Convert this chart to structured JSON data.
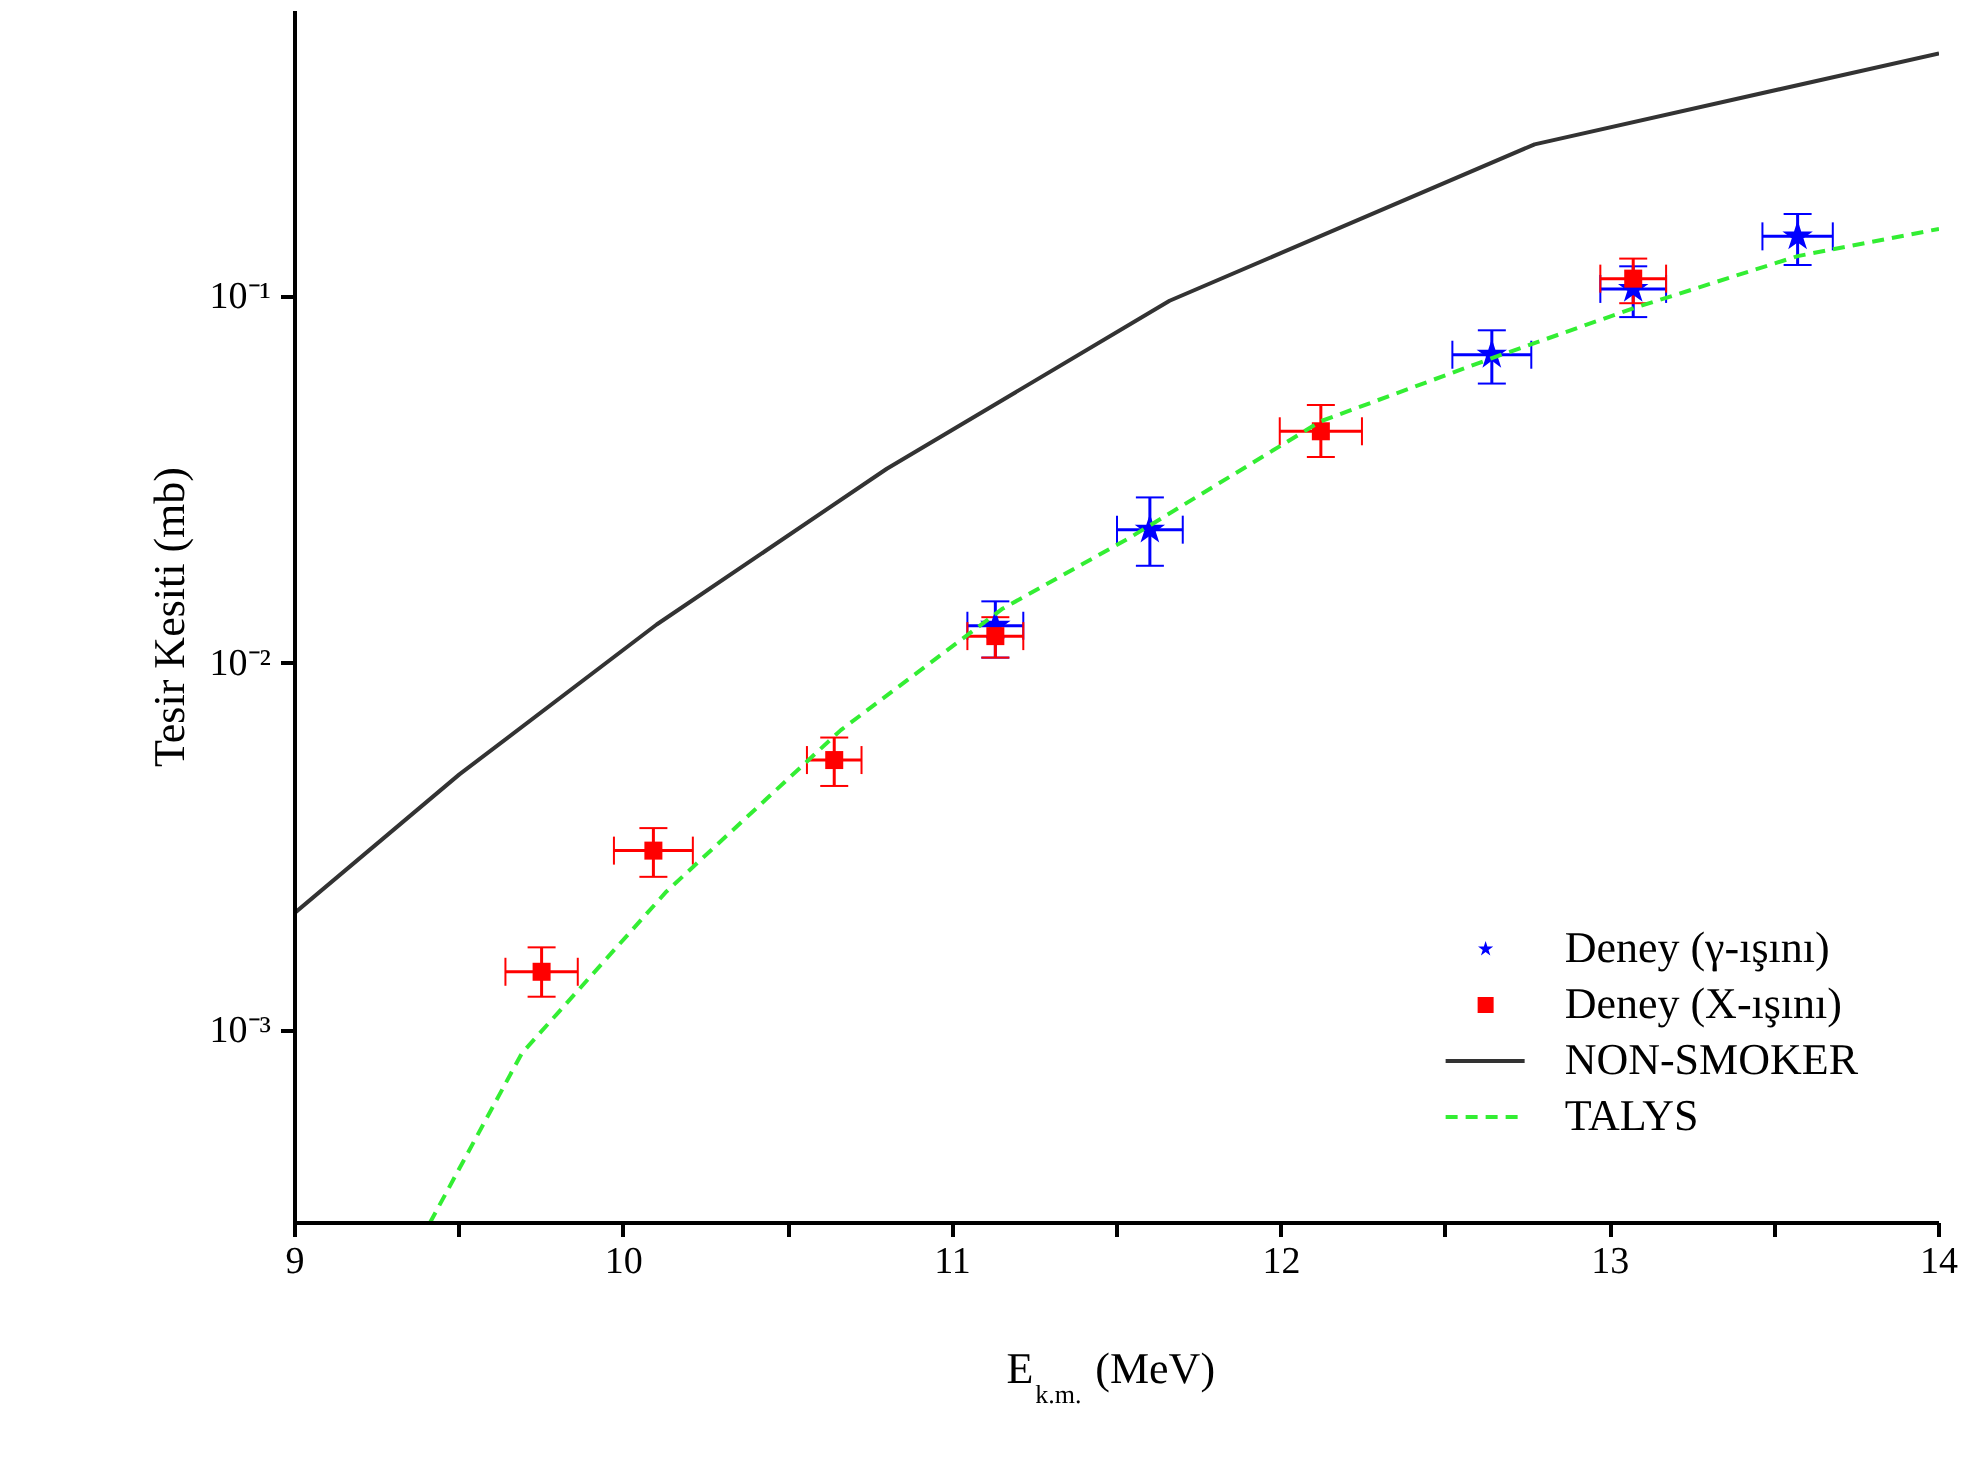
{
  "chart_data": {
    "type": "scatter",
    "xlabel": "E$_{k.m.}$ (MeV)",
    "ylabel": "Tesir Kesiti (mb)",
    "log": "y",
    "xlim": [
      9,
      14
    ],
    "ylim": [
      0.0003,
      0.6
    ],
    "xticks": [
      9,
      {
        "value": 9.5,
        "label": null
      },
      10,
      {
        "value": 10.5,
        "label": null
      },
      11,
      {
        "value": 11.5,
        "label": null
      },
      12,
      {
        "value": 12.5,
        "label": null
      },
      13,
      {
        "value": 13.5,
        "label": null
      },
      14
    ],
    "yticks": [
      {
        "value": 0.001,
        "label": "10⁻³"
      },
      {
        "value": 0.01,
        "label": "10⁻²"
      },
      {
        "value": 0.1,
        "label": "10⁻¹"
      }
    ],
    "grid": false,
    "legend": "bottom right",
    "series": [
      {
        "name": "Deney (γ-ışını)",
        "marker": "star",
        "color": "#0000ff",
        "x": [
          11.13,
          11.6,
          12.64,
          13.07,
          13.57
        ],
        "values": [
          0.0127,
          0.0232,
          0.0695,
          0.105,
          0.146
        ],
        "errors": [
          [
            0.0104,
            0.0148
          ],
          [
            0.0185,
            0.0284
          ],
          [
            0.058,
            0.081
          ],
          [
            0.088,
            0.121
          ],
          [
            0.122,
            0.168
          ]
        ],
        "xerrors": [
          0.085,
          0.1,
          0.12,
          0.1,
          0.107
        ]
      },
      {
        "name": "Deney (X-ışını)",
        "marker": "square",
        "color": "#ff0000",
        "x": [
          9.75,
          10.09,
          10.64,
          11.13,
          12.12,
          13.07
        ],
        "values": [
          0.00145,
          0.0031,
          0.00547,
          0.0119,
          0.043,
          0.112
        ],
        "errors": [
          [
            0.00124,
            0.00169
          ],
          [
            0.00263,
            0.00357
          ],
          [
            0.00465,
            0.0063
          ],
          [
            0.0104,
            0.0134
          ],
          [
            0.0366,
            0.0507
          ],
          [
            0.096,
            0.127
          ]
        ],
        "xerrors": [
          0.11,
          0.12,
          0.083,
          0.085,
          0.125,
          0.1
        ]
      },
      {
        "name": "NON-SMOKER",
        "type": "line",
        "line_style": "solid",
        "color": "#333333",
        "x": [
          9,
          9.5,
          10.1,
          10.8,
          11.66,
          12.77,
          14
        ],
        "values": [
          0.0021,
          0.005,
          0.0128,
          0.034,
          0.0975,
          0.26,
          0.46
        ]
      },
      {
        "name": "TALYS",
        "type": "line",
        "line_style": "dashed",
        "color": "#33ee33",
        "x": [
          9.41,
          9.69,
          10.13,
          10.66,
          11.15,
          11.54,
          12.12,
          12.64,
          13.07,
          13.57,
          14
        ],
        "values": [
          0.0003,
          0.00087,
          0.0024,
          0.0066,
          0.0141,
          0.0221,
          0.0458,
          0.068,
          0.093,
          0.129,
          0.153
        ]
      }
    ]
  }
}
